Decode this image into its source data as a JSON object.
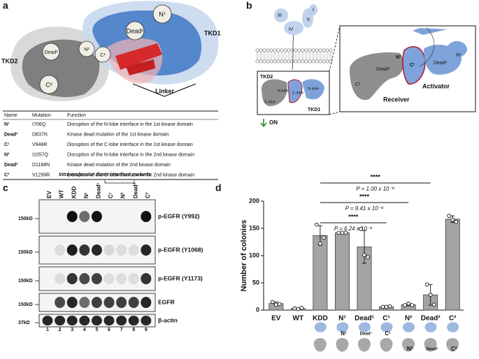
{
  "panel_a": {
    "letter": "a",
    "labels": {
      "tkd1": "TKD1",
      "tkd2": "TKD2",
      "linker": "Linker"
    },
    "residues": [
      "N¹",
      "Dead¹",
      "C¹",
      "N²",
      "Dead²",
      "C²"
    ],
    "table": {
      "header": [
        "Name",
        "Mutation",
        "Function"
      ],
      "rows": [
        [
          "N¹",
          "I706Q",
          "Disruption of the N-lobe interface in the 1st kinase domain"
        ],
        [
          "Dead¹",
          "D837N",
          "Kinase dead mutation of the 1st kinase domain"
        ],
        [
          "C¹",
          "V948R",
          "Disruption of the C-lobe interface in the 1st kinase domain"
        ],
        [
          "N²",
          "I1057Q",
          "Disruption of the N-lobe interface in the 2nd kinase domain"
        ],
        [
          "Dead²",
          "D1188N",
          "Kinase dead mutation of the 2nd kinase domain"
        ],
        [
          "C²",
          "V1299R",
          "Disruption of the C-lobe interface in the 2nd kinase domain"
        ]
      ]
    }
  },
  "panel_b": {
    "letter": "b",
    "domains": [
      "III",
      "IV",
      "II",
      "I"
    ],
    "inset": {
      "tkd2": "TKD2",
      "n_lobe_2": "N-lobe",
      "c_lobe_2": "C-lobe",
      "n_lobe_1": "N-lobe",
      "c_lobe_1": "C-lobe",
      "tkd1": "TKD1",
      "on": "ON"
    },
    "zoom": {
      "dead2": "Dead²",
      "n2": "N²",
      "c1": "C¹",
      "dead1": "Dead¹",
      "n1": "N¹",
      "c2": "C²",
      "receiver": "Receiver",
      "activator": "Activator"
    }
  },
  "panel_c": {
    "letter": "c",
    "group_label": "Intra-molecular dimer interface mutants",
    "lanes": [
      "EV",
      "WT",
      "KDD",
      "N¹",
      "Dead¹",
      "C¹",
      "N²",
      "Dead²",
      "C²"
    ],
    "lane_colors": [
      "#111111",
      "#111111",
      "#111111",
      "#5b8bd0",
      "#5b8bd0",
      "#5b8bd0",
      "#8c8c8c",
      "#8c8c8c",
      "#8c8c8c"
    ],
    "lane_numbers": [
      1,
      2,
      3,
      4,
      5,
      6,
      7,
      8,
      9
    ],
    "blots": [
      {
        "kd": "150kD",
        "label": "p-EGFR (Y992)"
      },
      {
        "kd": "150kD",
        "label": "p-EGFR (Y1068)"
      },
      {
        "kd": "150kD",
        "label": "p-EGFR (Y1173)"
      },
      {
        "kd": "150kD",
        "label": "EGFR"
      },
      {
        "kd": "37kD",
        "label": "β-actin"
      }
    ]
  },
  "panel_d": {
    "letter": "d"
  },
  "chart_data": {
    "type": "bar",
    "y_label": "Number of colonies",
    "categories": [
      "EV",
      "WT",
      "KDD",
      "N¹",
      "Dead¹",
      "C¹",
      "N²",
      "Dead²",
      "C²"
    ],
    "category_colors": [
      "#111111",
      "#111111",
      "#111111",
      "#5b8bd0",
      "#5b8bd0",
      "#5b8bd0",
      "#8c8c8c",
      "#8c8c8c",
      "#8c8c8c"
    ],
    "values": [
      12,
      3,
      137,
      142,
      116,
      6,
      10,
      28,
      167
    ],
    "errors": [
      3,
      1,
      18,
      1,
      30,
      1,
      2,
      19,
      6
    ],
    "points": [
      [
        15,
        10,
        11
      ],
      [
        3,
        2,
        4
      ],
      [
        157,
        122,
        133
      ],
      [
        142,
        142,
        142
      ],
      [
        149,
        101,
        97
      ],
      [
        6,
        6,
        7
      ],
      [
        9,
        12,
        9
      ],
      [
        47,
        28,
        10
      ],
      [
        173,
        166,
        162
      ]
    ],
    "color": "#a3a3a3",
    "ylim": [
      0,
      200
    ],
    "yticks": [
      0,
      50,
      100,
      150,
      200
    ],
    "annotations": [
      {
        "stars": "****",
        "p": "P = 1.00 x 10⁻⁸"
      },
      {
        "stars": "****",
        "p": "P = 9.41 x 10⁻⁸"
      },
      {
        "stars": "****",
        "p": "P = 6.24 x 10⁻⁸"
      }
    ],
    "icon_labels": [
      "N¹",
      "Dead¹",
      "C¹",
      "N²",
      "Dead²",
      "C²"
    ]
  }
}
